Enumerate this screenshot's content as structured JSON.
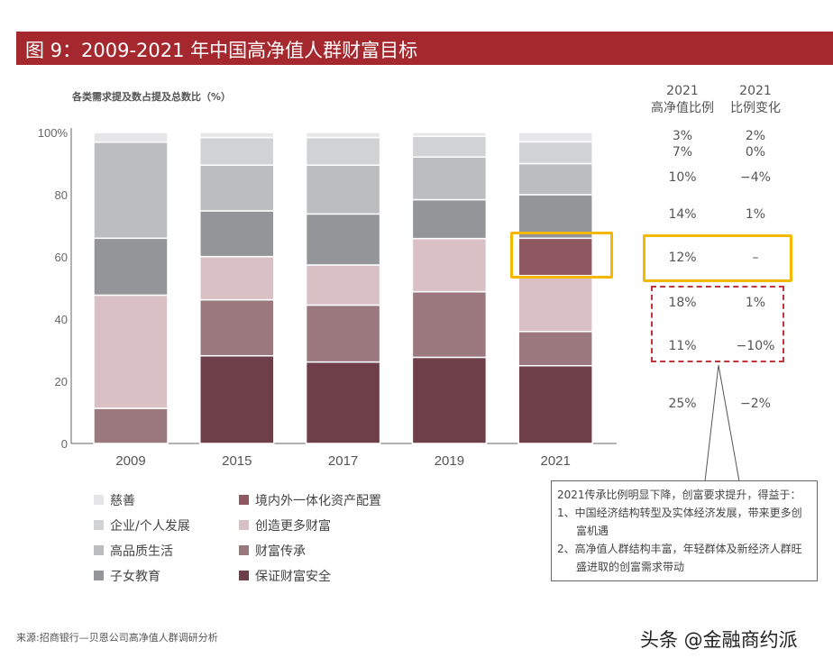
{
  "header": {
    "title": "图 9：2009-2021 年中国高净值人群财富目标"
  },
  "colors": {
    "header_bg": "#a4282d",
    "highlight_box": "#f5b800",
    "dashed_box": "#c0343a"
  },
  "chart_data": {
    "type": "bar",
    "stacked": true,
    "title": "各类需求提及数占提及总数比（%）",
    "xlabel": "",
    "ylabel": "",
    "ylim": [
      0,
      100
    ],
    "yticks": [
      "0",
      "20",
      "40",
      "60",
      "80",
      "100%"
    ],
    "categories": [
      "2009",
      "2015",
      "2017",
      "2019",
      "2021"
    ],
    "series": [
      {
        "name": "保证财富安全",
        "color": "#6e3f48",
        "values": [
          0,
          28.2,
          26.2,
          27.7,
          25
        ]
      },
      {
        "name": "财富传承",
        "color": "#9a787d",
        "values": [
          11.3,
          18,
          18.3,
          21.1,
          11
        ]
      },
      {
        "name": "创造更多财富",
        "color": "#d9c0c5",
        "values": [
          36.4,
          13.9,
          12.9,
          17.1,
          18
        ]
      },
      {
        "name": "境内外一体化资产配置",
        "color": "#8f5860",
        "values": [
          0,
          0,
          0,
          0,
          12
        ]
      },
      {
        "name": "子女教育",
        "color": "#939598",
        "values": [
          18.3,
          14.7,
          16.4,
          12.5,
          14
        ]
      },
      {
        "name": "高品质生活",
        "color": "#bcbdbf",
        "values": [
          30.9,
          14.7,
          15.7,
          13.7,
          10
        ]
      },
      {
        "name": "企业/个人发展",
        "color": "#d1d2d4",
        "values": [
          0,
          8.9,
          8.9,
          6.7,
          7
        ]
      },
      {
        "name": "慈善",
        "color": "#e6e6e8",
        "values": [
          3.1,
          1.6,
          1.6,
          1.2,
          3
        ]
      }
    ],
    "legend_placement": "bottom",
    "grid": false
  },
  "legend": [
    {
      "label": "慈善",
      "color": "#e6e6e8"
    },
    {
      "label": "企业/个人发展",
      "color": "#d1d2d4"
    },
    {
      "label": "高品质生活",
      "color": "#bcbdbf"
    },
    {
      "label": "子女教育",
      "color": "#939598"
    },
    {
      "label": "境内外一体化资产配置",
      "color": "#8f5860"
    },
    {
      "label": "创造更多财富",
      "color": "#d9c0c5"
    },
    {
      "label": "财富传承",
      "color": "#9a787d"
    },
    {
      "label": "保证财富安全",
      "color": "#6e3f48"
    }
  ],
  "side_table": {
    "col1_header": [
      "2021",
      "高净值比例"
    ],
    "col2_header": [
      "2021",
      "比例变化"
    ],
    "rows": [
      {
        "share": "3%",
        "change": "2%"
      },
      {
        "share": "7%",
        "change": "0%"
      },
      {
        "share": "10%",
        "change": "−4%"
      },
      {
        "share": "14%",
        "change": "1%"
      },
      {
        "share": "12%",
        "change": "–"
      },
      {
        "share": "18%",
        "change": "1%"
      },
      {
        "share": "11%",
        "change": "−10%"
      },
      {
        "share": "25%",
        "change": "−2%"
      }
    ]
  },
  "callout": {
    "line1": "2021传承比例明显下降，创富要求提升，得益于：",
    "point1a": "1、中国经济结构转型及实体经济发展，带来更多创",
    "point1b": "富机遇",
    "point2a": "2、高净值人群结构丰富，年轻群体及新经济人群旺",
    "point2b": "盛进取的创富需求带动"
  },
  "source": "来源:招商银行—贝恩公司高净值人群调研分析",
  "watermark": "头条 @金融商约派"
}
